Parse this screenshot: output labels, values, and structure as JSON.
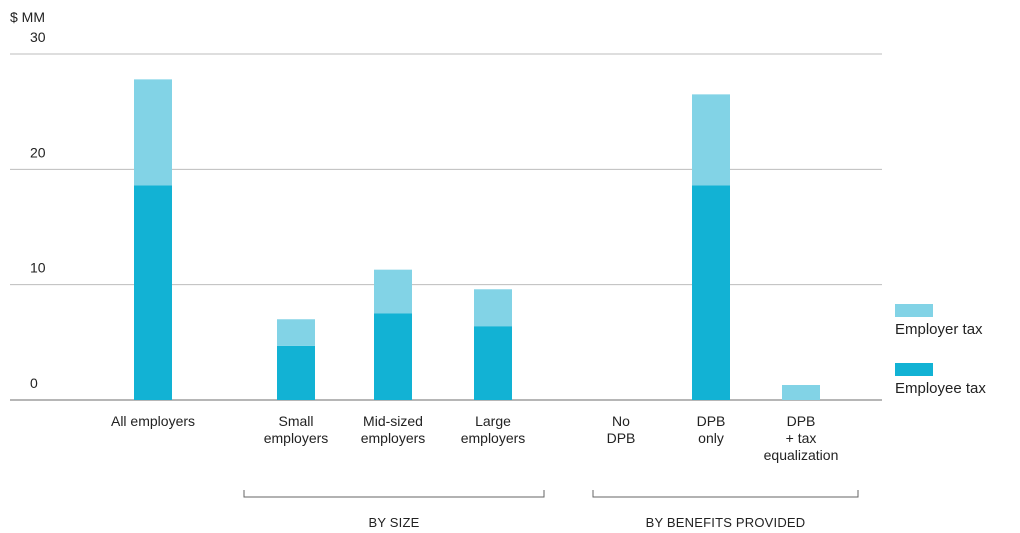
{
  "chart_data": {
    "type": "bar",
    "stacked": true,
    "unit_label": "$ MM",
    "ylim": [
      0,
      30
    ],
    "yticks": [
      0,
      10,
      20,
      30
    ],
    "grid": true,
    "legend_position": "right",
    "categories": [
      [
        "All employers"
      ],
      [
        "Small",
        "employers"
      ],
      [
        "Mid-sized",
        "employers"
      ],
      [
        "Large",
        "employers"
      ],
      [
        "No",
        "DPB"
      ],
      [
        "DPB",
        "only"
      ],
      [
        "DPB",
        "+ tax",
        "equalization"
      ]
    ],
    "series": [
      {
        "name": "Employee tax",
        "color": "#12b2d4",
        "values": [
          18.6,
          4.7,
          7.5,
          6.4,
          0,
          18.6,
          0
        ]
      },
      {
        "name": "Employer tax",
        "color": "#82d3e6",
        "values": [
          9.2,
          2.3,
          3.8,
          3.2,
          0,
          7.9,
          1.3
        ]
      }
    ],
    "groups": [
      {
        "label": "BY SIZE",
        "from": 1,
        "to": 3
      },
      {
        "label": "BY BENEFITS PROVIDED",
        "from": 4,
        "to": 6
      }
    ]
  }
}
